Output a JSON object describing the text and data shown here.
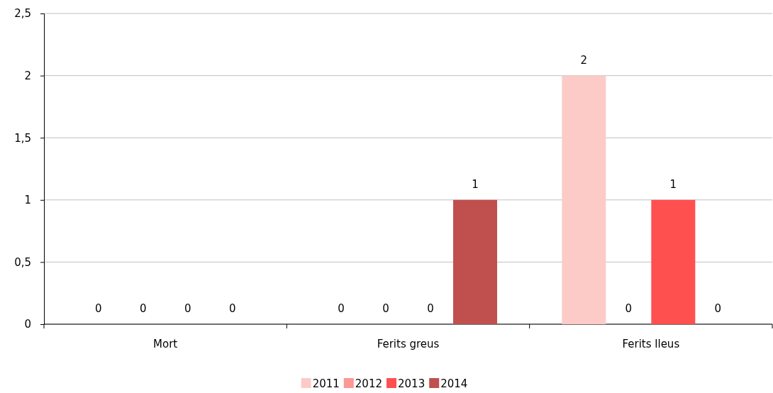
{
  "chart_data": {
    "type": "bar",
    "categories": [
      "Mort",
      "Ferits greus",
      "Ferits lleus"
    ],
    "series": [
      {
        "name": "2011",
        "color": "#fccbc8",
        "values": [
          0,
          0,
          2
        ]
      },
      {
        "name": "2012",
        "color": "#fd9893",
        "values": [
          0,
          0,
          0
        ]
      },
      {
        "name": "2013",
        "color": "#ff5050",
        "values": [
          0,
          0,
          1
        ]
      },
      {
        "name": "2014",
        "color": "#c0504d",
        "values": [
          0,
          1,
          0
        ]
      }
    ],
    "ylim": [
      0,
      2.5
    ],
    "yticks": [
      0,
      {
        "value": 0.5,
        "label": "0,5"
      },
      1,
      {
        "value": 1.5,
        "label": "1,5"
      },
      2,
      {
        "value": 2.5,
        "label": "2,5"
      }
    ],
    "grid": "y",
    "data_labels": true,
    "legend": "bottom"
  }
}
